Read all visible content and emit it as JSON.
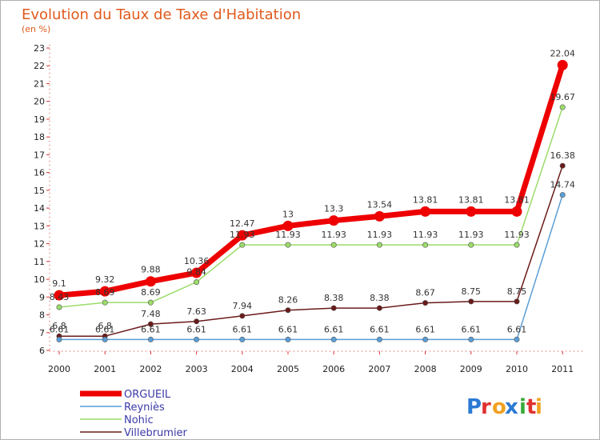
{
  "title": "Evolution du Taux de Taxe d'Habitation",
  "subtitle": "(en %)",
  "logo": "Proxiti",
  "chart_data": {
    "type": "line",
    "title": "Evolution du Taux de Taxe d'Habitation",
    "ylabel": "(en %)",
    "xlabel": "",
    "x": [
      "2000",
      "2001",
      "2002",
      "2003",
      "2004",
      "2005",
      "2006",
      "2007",
      "2008",
      "2009",
      "2010",
      "2011"
    ],
    "ylim": [
      6,
      23
    ],
    "yticks": [
      6,
      7,
      8,
      9,
      10,
      11,
      12,
      13,
      14,
      15,
      16,
      17,
      18,
      19,
      20,
      21,
      22,
      23
    ],
    "grid": false,
    "legend_placement": "bottom-left",
    "series": [
      {
        "name": "Villebrumier",
        "color": "#6b1a1a",
        "values": [
          6.8,
          6.8,
          7.48,
          7.63,
          7.94,
          8.26,
          8.38,
          8.38,
          8.67,
          8.75,
          8.75,
          16.38
        ],
        "labels": [
          "6.8",
          "6.8",
          "7.48",
          "7.63",
          "7.94",
          "8.26",
          "8.38",
          "8.38",
          "8.67",
          "8.75",
          "8.75",
          "16.38"
        ]
      },
      {
        "name": "Reyniès",
        "color": "#5a9ed6",
        "values": [
          6.61,
          6.61,
          6.61,
          6.61,
          6.61,
          6.61,
          6.61,
          6.61,
          6.61,
          6.61,
          6.61,
          14.74
        ],
        "labels": [
          "6.61",
          "6.61",
          "6.61",
          "6.61",
          "6.61",
          "6.61",
          "6.61",
          "6.61",
          "6.61",
          "6.61",
          "6.61",
          "14.74"
        ]
      },
      {
        "name": "Nohic",
        "color": "#9bdc6a",
        "values": [
          8.43,
          8.69,
          8.69,
          9.84,
          11.93,
          11.93,
          11.93,
          11.93,
          11.93,
          11.93,
          11.93,
          19.67
        ],
        "labels": [
          "8.43",
          "8.69",
          "8.69",
          "9.84",
          "11.93",
          "11.93",
          "11.93",
          "11.93",
          "11.93",
          "11.93",
          "11.93",
          "19.67"
        ]
      },
      {
        "name": "ORGUEIL",
        "color": "#ee0000",
        "values": [
          9.1,
          9.32,
          9.88,
          10.36,
          12.47,
          13,
          13.3,
          13.54,
          13.81,
          13.81,
          13.81,
          22.04
        ],
        "labels": [
          "9.1",
          "9.32",
          "9.88",
          "10.36",
          "12.47",
          "13",
          "13.3",
          "13.54",
          "13.81",
          "13.81",
          "13.81",
          "22.04"
        ]
      }
    ],
    "legend": [
      "ORGUEIL",
      "Reyniès",
      "Nohic",
      "Villebrumier"
    ]
  }
}
